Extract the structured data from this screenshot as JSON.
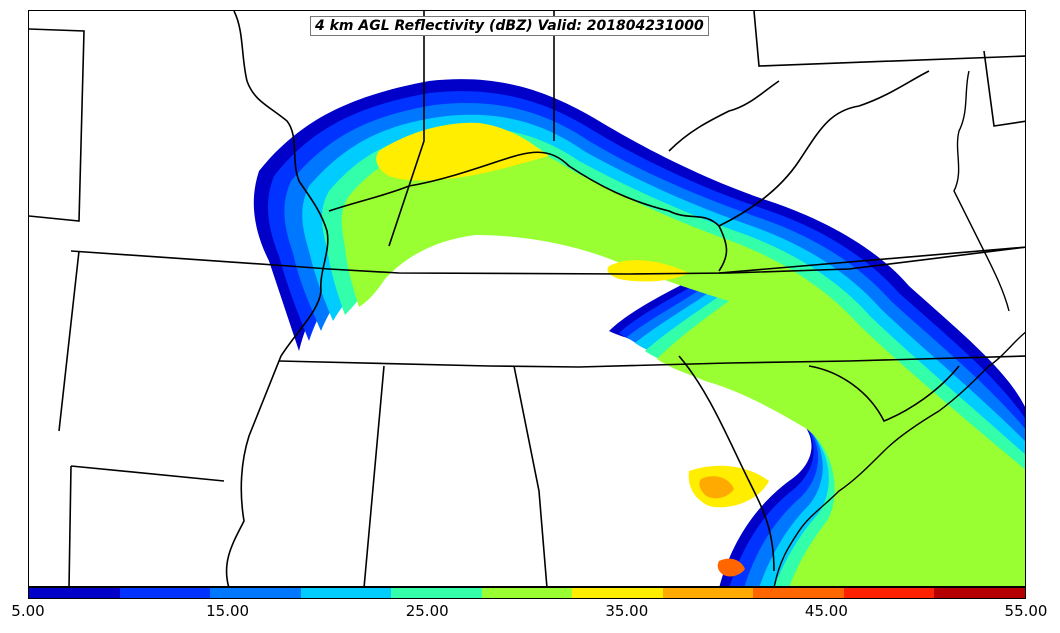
{
  "title": "4 km AGL Reflectivity (dBZ) Valid: 201804231000",
  "colorbar": {
    "levels": [
      5,
      10,
      15,
      20,
      25,
      30,
      35,
      40,
      45,
      50,
      55
    ],
    "colors": [
      "#0000c8",
      "#0033ff",
      "#0077ff",
      "#00ccff",
      "#33ffaa",
      "#99ff33",
      "#ffee00",
      "#ffaa00",
      "#ff6600",
      "#ff2200",
      "#b40000"
    ],
    "tick_labels": [
      "5.00",
      "15.00",
      "25.00",
      "35.00",
      "45.00",
      "55.00"
    ]
  }
}
